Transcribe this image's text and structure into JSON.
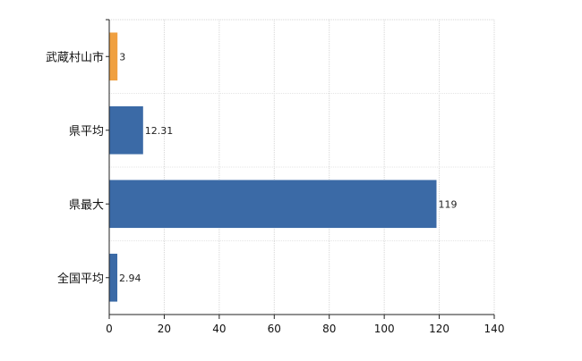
{
  "chart_data": {
    "type": "bar",
    "orientation": "horizontal",
    "categories": [
      "武蔵村山市",
      "県平均",
      "県最大",
      "全国平均"
    ],
    "values": [
      3,
      12.31,
      119,
      2.94
    ],
    "value_labels": [
      "3",
      "12.31",
      "119",
      "2.94"
    ],
    "bar_colors": [
      "#f0a040",
      "#3b6aa6",
      "#3b6aa6",
      "#3b6aa6"
    ],
    "title": "",
    "xlabel": "",
    "ylabel": "",
    "xlim": [
      0,
      140
    ],
    "xticks": [
      0,
      20,
      40,
      60,
      80,
      100,
      120,
      140
    ],
    "grid": true,
    "legend": "none"
  }
}
